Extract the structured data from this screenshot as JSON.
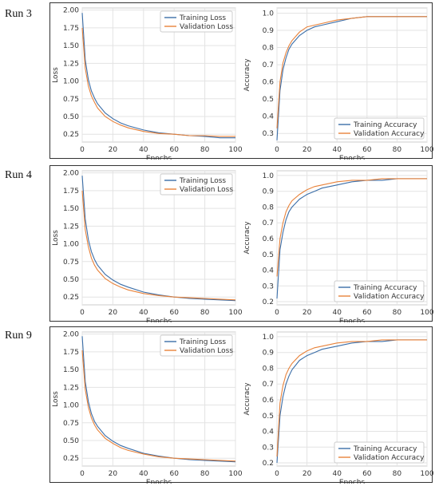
{
  "runs": [
    {
      "label": "Run 3",
      "loss": {
        "ylabel": "Loss",
        "xlabel": "Epochs",
        "yticks": [
          "2.00",
          "1.75",
          "1.50",
          "1.25",
          "1.00",
          "0.75",
          "0.50",
          "0.25"
        ],
        "xticks": [
          "0",
          "20",
          "40",
          "60",
          "80",
          "100"
        ]
      },
      "acc": {
        "ylabel": "Accuracy",
        "xlabel": "Epochs",
        "yticks": [
          "1.0",
          "0.9",
          "0.8",
          "0.7",
          "0.6",
          "0.5",
          "0.4",
          "0.3"
        ],
        "xticks": [
          "0",
          "20",
          "40",
          "60",
          "80",
          "100"
        ]
      }
    },
    {
      "label": "Run 4",
      "loss": {
        "ylabel": "Loss",
        "xlabel": "Epochs",
        "yticks": [
          "2.00",
          "1.75",
          "1.50",
          "1.25",
          "1.00",
          "0.75",
          "0.50",
          "0.25"
        ],
        "xticks": [
          "0",
          "20",
          "40",
          "60",
          "80",
          "100"
        ]
      },
      "acc": {
        "ylabel": "Accuracy",
        "xlabel": "Epochs",
        "yticks": [
          "1.0",
          "0.9",
          "0.8",
          "0.7",
          "0.6",
          "0.5",
          "0.4",
          "0.3",
          "0.2"
        ],
        "xticks": [
          "0",
          "20",
          "40",
          "60",
          "80",
          "100"
        ]
      }
    },
    {
      "label": "Run 9",
      "loss": {
        "ylabel": "Loss",
        "xlabel": "Epochs",
        "yticks": [
          "2.00",
          "1.75",
          "1.50",
          "1.25",
          "1.00",
          "0.75",
          "0.50",
          "0.25"
        ],
        "xticks": [
          "0",
          "20",
          "40",
          "60",
          "80",
          "100"
        ]
      },
      "acc": {
        "ylabel": "Accuracy",
        "xlabel": "Epochs",
        "yticks": [
          "1.0",
          "0.9",
          "0.8",
          "0.7",
          "0.6",
          "0.5",
          "0.4",
          "0.3",
          "0.2"
        ],
        "xticks": [
          "0",
          "20",
          "40",
          "60",
          "80",
          "100"
        ]
      }
    }
  ],
  "colors": {
    "training": "#3b6ea8",
    "validation": "#e8823a"
  },
  "chart_data": [
    {
      "type": "line",
      "run": "Run 3",
      "xlabel": "Epochs",
      "ylabel": "Loss",
      "xlim": [
        0,
        100
      ],
      "ylim": [
        0.14,
        2.03
      ],
      "grid": true,
      "legend": "top-right",
      "x": [
        0,
        2,
        4,
        6,
        8,
        10,
        15,
        20,
        25,
        30,
        40,
        50,
        60,
        70,
        80,
        90,
        100
      ],
      "series": [
        {
          "name": "Training Loss",
          "values": [
            1.96,
            1.3,
            1.02,
            0.86,
            0.76,
            0.68,
            0.55,
            0.47,
            0.41,
            0.37,
            0.31,
            0.27,
            0.25,
            0.23,
            0.22,
            0.2,
            0.2
          ]
        },
        {
          "name": "Validation Loss",
          "values": [
            1.75,
            1.18,
            0.93,
            0.79,
            0.7,
            0.62,
            0.5,
            0.43,
            0.38,
            0.34,
            0.29,
            0.26,
            0.25,
            0.23,
            0.23,
            0.22,
            0.22
          ]
        }
      ]
    },
    {
      "type": "line",
      "run": "Run 3",
      "xlabel": "Epochs",
      "ylabel": "Accuracy",
      "xlim": [
        0,
        100
      ],
      "ylim": [
        0.25,
        1.03
      ],
      "grid": true,
      "legend": "bottom-right",
      "x": [
        0,
        2,
        4,
        6,
        8,
        10,
        15,
        20,
        25,
        30,
        40,
        50,
        60,
        70,
        80,
        90,
        100
      ],
      "series": [
        {
          "name": "Training Accuracy",
          "values": [
            0.26,
            0.55,
            0.67,
            0.74,
            0.79,
            0.82,
            0.87,
            0.9,
            0.92,
            0.93,
            0.95,
            0.97,
            0.98,
            0.98,
            0.98,
            0.98,
            0.98
          ]
        },
        {
          "name": "Validation Accuracy",
          "values": [
            0.33,
            0.6,
            0.71,
            0.77,
            0.81,
            0.84,
            0.89,
            0.92,
            0.93,
            0.94,
            0.96,
            0.97,
            0.98,
            0.98,
            0.98,
            0.98,
            0.98
          ]
        }
      ]
    },
    {
      "type": "line",
      "run": "Run 4",
      "xlabel": "Epochs",
      "ylabel": "Loss",
      "xlim": [
        0,
        100
      ],
      "ylim": [
        0.14,
        2.03
      ],
      "grid": true,
      "legend": "top-right",
      "x": [
        0,
        2,
        4,
        6,
        8,
        10,
        15,
        20,
        25,
        30,
        40,
        50,
        60,
        70,
        80,
        90,
        100
      ],
      "series": [
        {
          "name": "Training Loss",
          "values": [
            1.96,
            1.35,
            1.06,
            0.89,
            0.78,
            0.7,
            0.57,
            0.49,
            0.43,
            0.39,
            0.32,
            0.28,
            0.25,
            0.23,
            0.22,
            0.21,
            0.2
          ]
        },
        {
          "name": "Validation Loss",
          "values": [
            1.75,
            1.2,
            0.96,
            0.8,
            0.7,
            0.63,
            0.51,
            0.44,
            0.39,
            0.35,
            0.3,
            0.27,
            0.25,
            0.24,
            0.23,
            0.22,
            0.21
          ]
        }
      ]
    },
    {
      "type": "line",
      "run": "Run 4",
      "xlabel": "Epochs",
      "ylabel": "Accuracy",
      "xlim": [
        0,
        100
      ],
      "ylim": [
        0.18,
        1.03
      ],
      "grid": true,
      "legend": "bottom-right",
      "x": [
        0,
        2,
        4,
        6,
        8,
        10,
        15,
        20,
        25,
        30,
        40,
        50,
        60,
        70,
        80,
        90,
        100
      ],
      "series": [
        {
          "name": "Training Accuracy",
          "values": [
            0.22,
            0.53,
            0.64,
            0.72,
            0.77,
            0.8,
            0.85,
            0.88,
            0.9,
            0.92,
            0.94,
            0.96,
            0.97,
            0.97,
            0.98,
            0.98,
            0.98
          ]
        },
        {
          "name": "Validation Accuracy",
          "values": [
            0.36,
            0.6,
            0.7,
            0.77,
            0.81,
            0.84,
            0.88,
            0.91,
            0.93,
            0.94,
            0.96,
            0.97,
            0.97,
            0.98,
            0.98,
            0.98,
            0.98
          ]
        }
      ]
    },
    {
      "type": "line",
      "run": "Run 9",
      "xlabel": "Epochs",
      "ylabel": "Loss",
      "xlim": [
        0,
        100
      ],
      "ylim": [
        0.14,
        2.03
      ],
      "grid": true,
      "legend": "top-right",
      "x": [
        0,
        2,
        4,
        6,
        8,
        10,
        15,
        20,
        25,
        30,
        40,
        50,
        60,
        70,
        80,
        90,
        100
      ],
      "series": [
        {
          "name": "Training Loss",
          "values": [
            1.97,
            1.33,
            1.05,
            0.88,
            0.77,
            0.7,
            0.57,
            0.49,
            0.43,
            0.39,
            0.32,
            0.28,
            0.25,
            0.23,
            0.22,
            0.21,
            0.2
          ]
        },
        {
          "name": "Validation Loss",
          "values": [
            1.77,
            1.22,
            0.97,
            0.82,
            0.72,
            0.65,
            0.53,
            0.46,
            0.4,
            0.36,
            0.31,
            0.27,
            0.25,
            0.24,
            0.23,
            0.22,
            0.21
          ]
        }
      ]
    },
    {
      "type": "line",
      "run": "Run 9",
      "xlabel": "Epochs",
      "ylabel": "Accuracy",
      "xlim": [
        0,
        100
      ],
      "ylim": [
        0.18,
        1.03
      ],
      "grid": true,
      "legend": "bottom-right",
      "x": [
        0,
        2,
        4,
        6,
        8,
        10,
        15,
        20,
        25,
        30,
        40,
        50,
        60,
        70,
        80,
        90,
        100
      ],
      "series": [
        {
          "name": "Training Accuracy",
          "values": [
            0.2,
            0.5,
            0.62,
            0.7,
            0.75,
            0.79,
            0.85,
            0.88,
            0.9,
            0.92,
            0.94,
            0.96,
            0.97,
            0.97,
            0.98,
            0.98,
            0.98
          ]
        },
        {
          "name": "Validation Accuracy",
          "values": [
            0.24,
            0.58,
            0.69,
            0.76,
            0.8,
            0.83,
            0.88,
            0.91,
            0.93,
            0.94,
            0.96,
            0.97,
            0.97,
            0.98,
            0.98,
            0.98,
            0.98
          ]
        }
      ]
    }
  ]
}
